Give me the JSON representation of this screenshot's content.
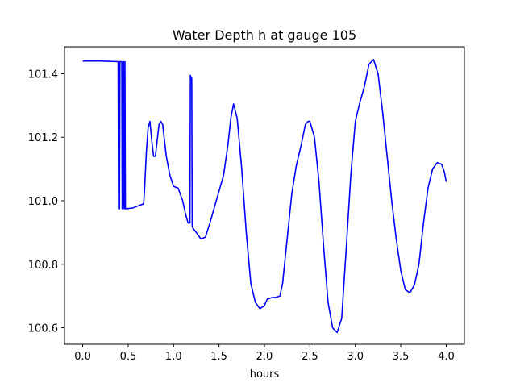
{
  "chart_data": {
    "type": "line",
    "title": "Water Depth h at gauge 105",
    "xlabel": "hours",
    "ylabel": "",
    "xlim": [
      -0.2,
      4.2
    ],
    "ylim": [
      100.548,
      101.485
    ],
    "xticks": [
      0.0,
      0.5,
      1.0,
      1.5,
      2.0,
      2.5,
      3.0,
      3.5,
      4.0
    ],
    "xtick_labels": [
      "0.0",
      "0.5",
      "1.0",
      "1.5",
      "2.0",
      "2.5",
      "3.0",
      "3.5",
      "4.0"
    ],
    "yticks": [
      100.6,
      100.8,
      101.0,
      101.2,
      101.4
    ],
    "ytick_labels": [
      "100.6",
      "100.8",
      "101.0",
      "101.2",
      "101.4"
    ],
    "grid": false,
    "legend": "none",
    "series": [
      {
        "color": "#0000ff",
        "x": [
          0.0,
          0.2,
          0.39,
          0.395,
          0.4,
          0.405,
          0.41,
          0.43,
          0.435,
          0.44,
          0.445,
          0.45,
          0.455,
          0.46,
          0.465,
          0.47,
          0.48,
          0.55,
          0.62,
          0.67,
          0.68,
          0.7,
          0.72,
          0.74,
          0.76,
          0.78,
          0.8,
          0.82,
          0.84,
          0.86,
          0.88,
          0.9,
          0.92,
          0.94,
          0.96,
          1.0,
          1.05,
          1.1,
          1.13,
          1.16,
          1.18,
          1.185,
          1.19,
          1.2,
          1.205,
          1.21,
          1.25,
          1.3,
          1.35,
          1.4,
          1.45,
          1.5,
          1.55,
          1.6,
          1.63,
          1.66,
          1.7,
          1.75,
          1.8,
          1.85,
          1.9,
          1.95,
          2.0,
          2.03,
          2.08,
          2.12,
          2.17,
          2.2,
          2.25,
          2.3,
          2.35,
          2.4,
          2.45,
          2.48,
          2.5,
          2.55,
          2.6,
          2.65,
          2.7,
          2.75,
          2.8,
          2.85,
          2.9,
          2.95,
          3.0,
          3.05,
          3.1,
          3.15,
          3.2,
          3.25,
          3.3,
          3.35,
          3.4,
          3.45,
          3.5,
          3.55,
          3.6,
          3.65,
          3.7,
          3.75,
          3.8,
          3.85,
          3.9,
          3.95,
          3.98,
          4.0
        ],
        "y": [
          101.44,
          101.44,
          101.438,
          100.975,
          100.975,
          100.975,
          101.438,
          101.438,
          100.975,
          100.975,
          101.438,
          101.438,
          100.975,
          100.975,
          101.438,
          100.975,
          100.975,
          100.977,
          100.985,
          100.99,
          101.03,
          101.15,
          101.23,
          101.25,
          101.19,
          101.14,
          101.14,
          101.19,
          101.24,
          101.25,
          101.24,
          101.19,
          101.14,
          101.11,
          101.08,
          101.045,
          101.04,
          101.0,
          100.96,
          100.93,
          100.93,
          101.395,
          101.39,
          101.385,
          100.92,
          100.915,
          100.9,
          100.88,
          100.885,
          100.93,
          100.98,
          101.03,
          101.08,
          101.18,
          101.26,
          101.305,
          101.26,
          101.1,
          100.9,
          100.74,
          100.68,
          100.66,
          100.67,
          100.69,
          100.695,
          100.695,
          100.7,
          100.74,
          100.88,
          101.02,
          101.11,
          101.17,
          101.24,
          101.25,
          101.25,
          101.2,
          101.06,
          100.86,
          100.68,
          100.6,
          100.585,
          100.63,
          100.85,
          101.08,
          101.25,
          101.31,
          101.36,
          101.43,
          101.445,
          101.4,
          101.28,
          101.14,
          101.0,
          100.88,
          100.78,
          100.72,
          100.71,
          100.735,
          100.8,
          100.93,
          101.04,
          101.1,
          101.12,
          101.115,
          101.09,
          101.06
        ]
      }
    ]
  }
}
